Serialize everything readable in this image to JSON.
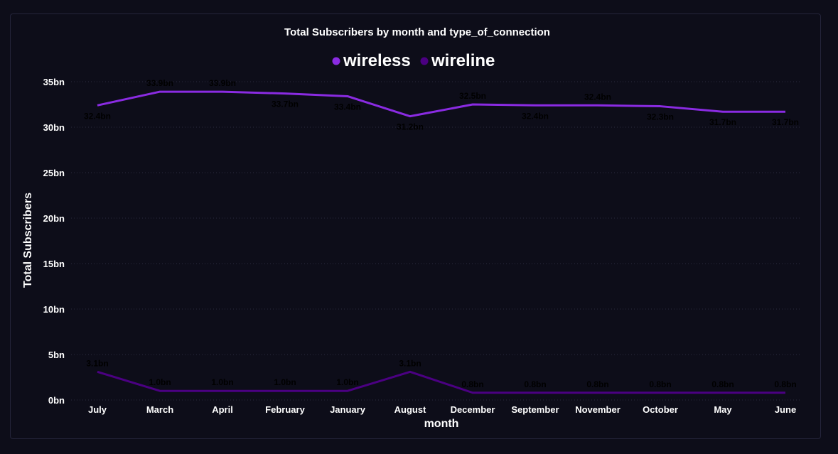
{
  "chart_data": {
    "type": "line",
    "title": "Total Subscribers by month and type_of_connection",
    "xlabel": "month",
    "ylabel": "Total Subscribers",
    "categories": [
      "July",
      "March",
      "April",
      "February",
      "January",
      "August",
      "December",
      "September",
      "November",
      "October",
      "May",
      "June"
    ],
    "ylim": [
      0,
      35
    ],
    "yticks": [
      "0bn",
      "5bn",
      "10bn",
      "15bn",
      "20bn",
      "25bn",
      "30bn",
      "35bn"
    ],
    "grid": true,
    "legend_position": "top-center",
    "series": [
      {
        "name": "wireless",
        "color": "#8a2be2",
        "values": [
          32.4,
          33.9,
          33.9,
          33.7,
          33.4,
          31.2,
          32.5,
          32.4,
          32.4,
          32.3,
          31.7,
          31.7
        ],
        "labels": [
          "32.4bn",
          "33.9bn",
          "33.9bn",
          "33.7bn",
          "33.4bn",
          "31.2bn",
          "32.5bn",
          "32.4bn",
          "32.4bn",
          "32.3bn",
          "31.7bn",
          "31.7bn"
        ]
      },
      {
        "name": "wireline",
        "color": "#4b0082",
        "values": [
          3.1,
          1.0,
          1.0,
          1.0,
          1.0,
          3.1,
          0.8,
          0.8,
          0.8,
          0.8,
          0.8,
          0.8
        ],
        "labels": [
          "3.1bn",
          "1.0bn",
          "1.0bn",
          "1.0bn",
          "1.0bn",
          "3.1bn",
          "0.8bn",
          "0.8bn",
          "0.8bn",
          "0.8bn",
          "0.8bn",
          "0.8bn"
        ]
      }
    ]
  }
}
